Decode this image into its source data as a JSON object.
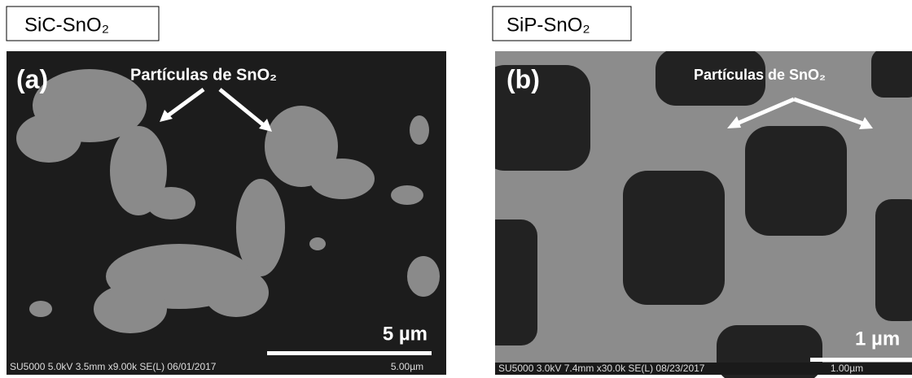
{
  "panels": [
    {
      "label": "SiC-SnO₂",
      "letter": "(a)",
      "annotation": "Partículas de SnO₂",
      "scale_bar": "5 µm",
      "footer": "SU5000 5.0kV 3.5mm x9.00k SE(L) 06/01/2017",
      "footer_scale": "5.00µm"
    },
    {
      "label": "SiP-SnO₂",
      "letter": "(b)",
      "annotation": "Partículas de SnO₂",
      "scale_bar": "1 µm",
      "footer": "SU5000 3.0kV 7.4mm x30.0k SE(L) 08/23/2017",
      "footer_scale": "1.00µm"
    }
  ]
}
